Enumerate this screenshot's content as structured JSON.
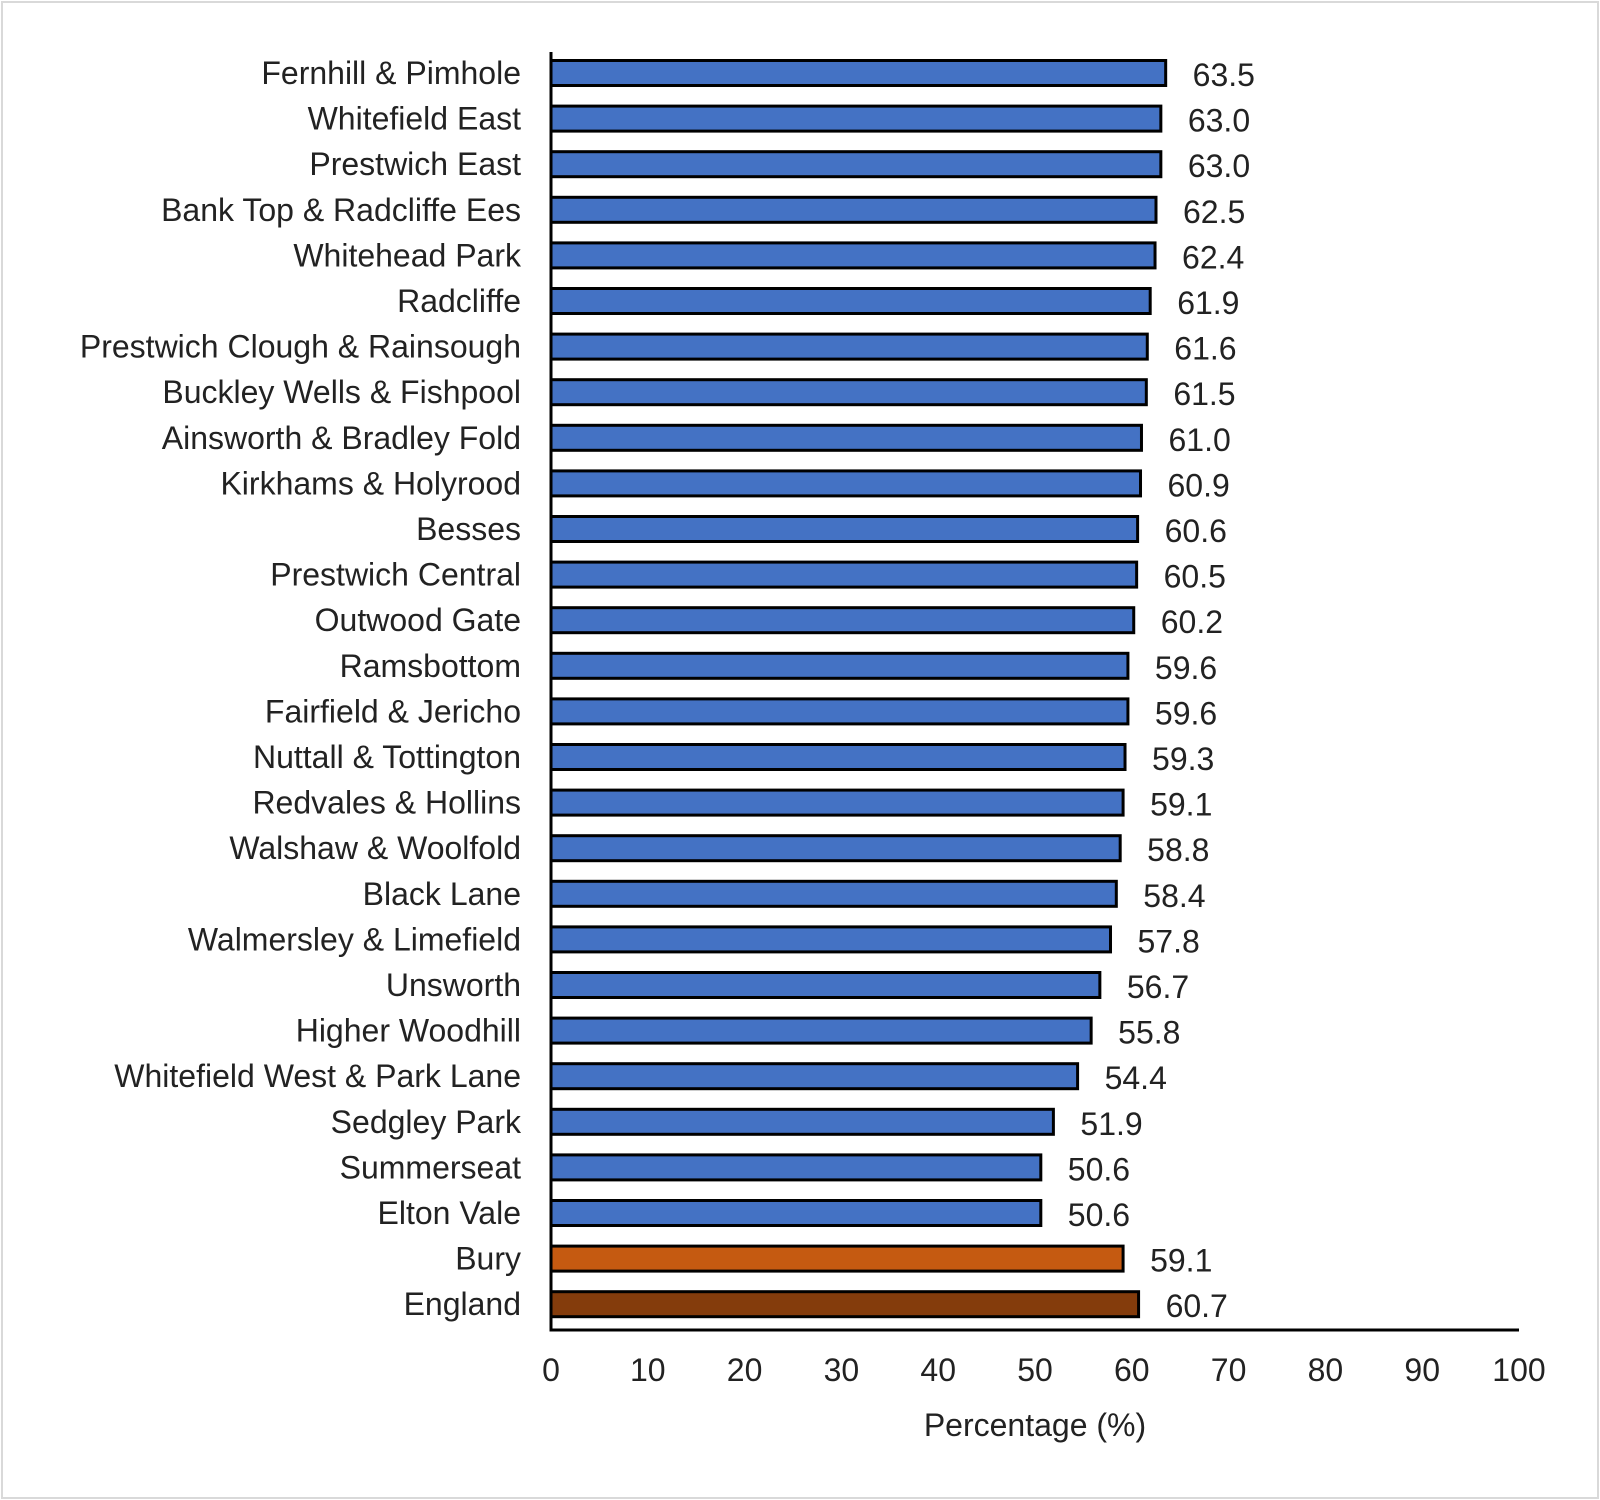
{
  "chart_data": {
    "type": "bar",
    "orientation": "horizontal",
    "categories": [
      "Fernhill & Pimhole",
      "Whitefield East",
      "Prestwich East",
      "Bank Top & Radcliffe Ees",
      "Whitehead Park",
      "Radcliffe",
      "Prestwich Clough & Rainsough",
      "Buckley Wells & Fishpool",
      "Ainsworth & Bradley Fold",
      "Kirkhams & Holyrood",
      "Besses",
      "Prestwich Central",
      "Outwood Gate",
      "Ramsbottom",
      "Fairfield & Jericho",
      "Nuttall & Tottington",
      "Redvales & Hollins",
      "Walshaw & Woolfold",
      "Black Lane",
      "Walmersley & Limefield",
      "Unsworth",
      "Higher Woodhill",
      "Whitefield West & Park Lane",
      "Sedgley Park",
      "Summerseat",
      "Elton Vale",
      "Bury",
      "England"
    ],
    "values": [
      63.5,
      63.0,
      63.0,
      62.5,
      62.4,
      61.9,
      61.6,
      61.5,
      61.0,
      60.9,
      60.6,
      60.5,
      60.2,
      59.6,
      59.6,
      59.3,
      59.1,
      58.8,
      58.4,
      57.8,
      56.7,
      55.8,
      54.4,
      51.9,
      50.6,
      50.6,
      59.1,
      60.7
    ],
    "value_labels": [
      "63.5",
      "63.0",
      "63.0",
      "62.5",
      "62.4",
      "61.9",
      "61.6",
      "61.5",
      "61.0",
      "60.9",
      "60.6",
      "60.5",
      "60.2",
      "59.6",
      "59.6",
      "59.3",
      "59.1",
      "58.8",
      "58.4",
      "57.8",
      "56.7",
      "55.8",
      "54.4",
      "51.9",
      "50.6",
      "50.6",
      "59.1",
      "60.7"
    ],
    "bar_colors": [
      "#4472c4",
      "#4472c4",
      "#4472c4",
      "#4472c4",
      "#4472c4",
      "#4472c4",
      "#4472c4",
      "#4472c4",
      "#4472c4",
      "#4472c4",
      "#4472c4",
      "#4472c4",
      "#4472c4",
      "#4472c4",
      "#4472c4",
      "#4472c4",
      "#4472c4",
      "#4472c4",
      "#4472c4",
      "#4472c4",
      "#4472c4",
      "#4472c4",
      "#4472c4",
      "#4472c4",
      "#4472c4",
      "#4472c4",
      "#c55a11",
      "#843c0c"
    ],
    "xlabel": "Percentage (%)",
    "ylabel": "",
    "xlim": [
      0,
      100
    ],
    "xticks": [
      0,
      10,
      20,
      30,
      40,
      50,
      60,
      70,
      80,
      90,
      100
    ],
    "xtick_labels": [
      "0",
      "10",
      "20",
      "30",
      "40",
      "50",
      "60",
      "70",
      "80",
      "90",
      "100"
    ],
    "grid": false,
    "legend": "none"
  }
}
